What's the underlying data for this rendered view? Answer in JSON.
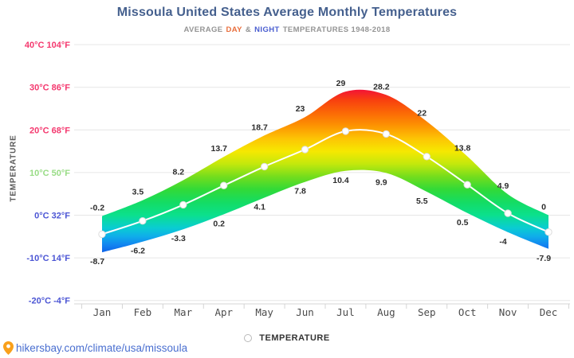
{
  "header": {
    "title": "Missoula United States Average Monthly Temperatures",
    "subtitle": {
      "prefix": "AVERAGE",
      "day": "DAY",
      "amp": "&",
      "night": "NIGHT",
      "suffix": "TEMPERATURES 1948-2018"
    }
  },
  "y_axis_title": "TEMPERATURE",
  "legend": {
    "label": "TEMPERATURE"
  },
  "footer": {
    "url": "hikersbay.com/climate/usa/missoula"
  },
  "colors": {
    "title": "#45608e",
    "subtitle_gray": "#949494",
    "day_orange": "#e96e3c",
    "night_blue": "#4a5ed0",
    "warm_tick": "#f4386e",
    "mild_tick": "#98dc85",
    "cold_tick": "#4b55d4",
    "grid": "#e6e6e6",
    "axis": "#d4d4d4",
    "month_label": "#4c4c4c",
    "data_label": "#2d2d2d",
    "url_blue": "#4a6fd0",
    "pin_orange": "#f9a01b",
    "mean_line": "#ffffff",
    "marker_ring": "#dcdcdc"
  },
  "chart_data": {
    "type": "area",
    "title": "Missoula United States Average Monthly Temperatures",
    "subtitle": "AVERAGE DAY & NIGHT TEMPERATURES 1948-2018",
    "categories": [
      "Jan",
      "Feb",
      "Mar",
      "Apr",
      "May",
      "Jun",
      "Jul",
      "Aug",
      "Sep",
      "Oct",
      "Nov",
      "Dec"
    ],
    "series": [
      {
        "name": "Day",
        "values": [
          -0.2,
          3.5,
          8.2,
          13.7,
          18.7,
          23,
          29,
          28.2,
          22,
          13.8,
          4.9,
          0
        ]
      },
      {
        "name": "Night",
        "values": [
          -8.7,
          -6.2,
          -3.3,
          0.2,
          4.1,
          7.8,
          10.4,
          9.9,
          5.5,
          0.5,
          -4,
          -7.9
        ]
      },
      {
        "name": "TEMPERATURE",
        "values": [
          -4.45,
          -1.35,
          2.45,
          6.95,
          11.4,
          15.4,
          19.7,
          19.05,
          13.75,
          7.15,
          0.45,
          -3.95
        ]
      }
    ],
    "y_ticks": [
      {
        "value": 40,
        "label": "40°C 104°F",
        "role": "warm"
      },
      {
        "value": 30,
        "label": "30°C 86°F",
        "role": "warm"
      },
      {
        "value": 20,
        "label": "20°C 68°F",
        "role": "warm"
      },
      {
        "value": 10,
        "label": "10°C 50°F",
        "role": "mild"
      },
      {
        "value": 0,
        "label": "0°C 32°F",
        "role": "cold"
      },
      {
        "value": -10,
        "label": "-10°C 14°F",
        "role": "cold"
      },
      {
        "value": -20,
        "label": "-20°C -4°F",
        "role": "cold"
      }
    ],
    "ylim": [
      -20,
      40
    ],
    "grid": true,
    "legend_position": "bottom",
    "xlabel": "",
    "ylabel": "TEMPERATURE",
    "color_scale": [
      {
        "t": 30,
        "color": "#f2083f"
      },
      {
        "t": 27,
        "color": "#f8400f"
      },
      {
        "t": 24,
        "color": "#fb6906"
      },
      {
        "t": 21,
        "color": "#fd9302"
      },
      {
        "t": 18,
        "color": "#fdc404"
      },
      {
        "t": 15,
        "color": "#f6e801"
      },
      {
        "t": 12,
        "color": "#c3e80c"
      },
      {
        "t": 9,
        "color": "#73dd1d"
      },
      {
        "t": 6,
        "color": "#31da38"
      },
      {
        "t": 3,
        "color": "#14dc64"
      },
      {
        "t": 0,
        "color": "#0be08d"
      },
      {
        "t": -3,
        "color": "#0accd2"
      },
      {
        "t": -5,
        "color": "#0fadea"
      },
      {
        "t": -7,
        "color": "#1283f0"
      },
      {
        "t": -10,
        "color": "#0c4ae2"
      }
    ]
  }
}
